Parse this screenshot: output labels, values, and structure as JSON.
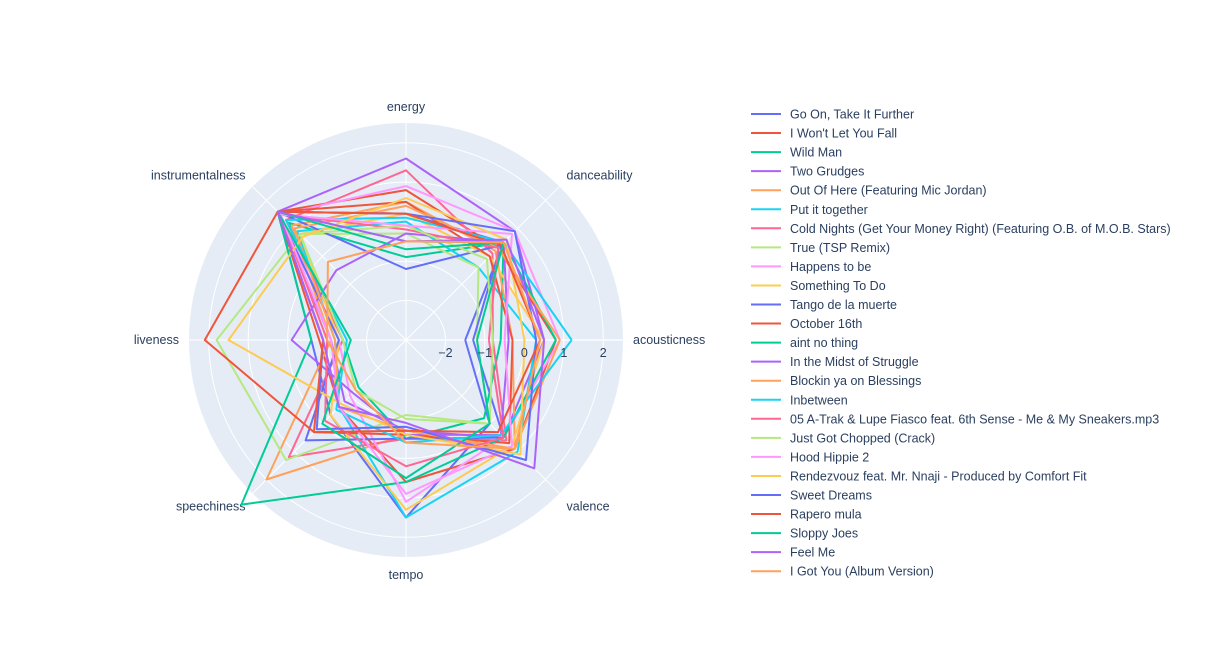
{
  "chart_data": {
    "type": "radar",
    "axes": [
      "acousticness",
      "danceability",
      "energy",
      "instrumentalness",
      "liveness",
      "speechiness",
      "tempo",
      "valence"
    ],
    "radial_range": [
      -3,
      2.5
    ],
    "radial_ticks": [
      -2,
      -1,
      0,
      1,
      2
    ],
    "radial_tick_labels": [
      "−2",
      "−1",
      "0",
      "1",
      "2"
    ],
    "legend_position": "right",
    "background": "#e5ecf6",
    "series": [
      {
        "name": "Go On, Take It Further",
        "color": "#636efa",
        "values": [
          -1.5,
          0.5,
          0.2,
          1.6,
          -0.6,
          -0.3,
          1.5,
          0.0
        ]
      },
      {
        "name": "I Won't Let You Fall",
        "color": "#EF553B",
        "values": [
          0.8,
          0.3,
          0.8,
          1.6,
          -0.8,
          -0.6,
          0.6,
          0.9
        ]
      },
      {
        "name": "Wild Man",
        "color": "#00cc96",
        "values": [
          -0.6,
          0.5,
          -0.9,
          1.2,
          -1.4,
          -1.3,
          -0.5,
          -0.2
        ]
      },
      {
        "name": "Two Grudges",
        "color": "#ab63fa",
        "values": [
          0.5,
          0.9,
          1.6,
          1.6,
          -1.1,
          -0.8,
          -0.7,
          0.5
        ]
      },
      {
        "name": "Out Of Here (Featuring Mic Jordan)",
        "color": "#FFA15A",
        "values": [
          -0.3,
          0.2,
          0.5,
          1.1,
          -1.1,
          2.0,
          -0.6,
          0.9
        ]
      },
      {
        "name": "Put it together",
        "color": "#19d3f3",
        "values": [
          0.3,
          -0.4,
          0.0,
          0.9,
          -1.2,
          -0.6,
          1.5,
          1.0
        ]
      },
      {
        "name": "Cold Nights (Get Your Money Right) (Featuring O.B. of M.O.B. Stars)",
        "color": "#FF6692",
        "values": [
          -0.8,
          0.1,
          1.3,
          1.3,
          -1.4,
          1.2,
          -0.5,
          0.6
        ]
      },
      {
        "name": "True (TSP Remix)",
        "color": "#B6E880",
        "values": [
          -1.2,
          -0.4,
          -0.3,
          0.8,
          1.8,
          1.3,
          -1.1,
          0.0
        ]
      },
      {
        "name": "Happens to be",
        "color": "#FF97FF",
        "values": [
          0.9,
          0.9,
          0.9,
          1.5,
          -1.3,
          -1.0,
          1.1,
          0.5
        ]
      },
      {
        "name": "Something To Do",
        "color": "#FECB52",
        "values": [
          0.5,
          0.0,
          0.2,
          0.8,
          -1.3,
          -0.3,
          1.3,
          0.8
        ]
      },
      {
        "name": "Tango de la muerte",
        "color": "#636efa",
        "values": [
          -1.3,
          0.4,
          -1.2,
          1.6,
          -1.3,
          0.6,
          -0.5,
          0.5
        ]
      },
      {
        "name": "October 16th",
        "color": "#EF553B",
        "values": [
          -0.3,
          0.0,
          0.5,
          1.6,
          2.1,
          0.3,
          -0.6,
          0.7
        ]
      },
      {
        "name": "aint no thing",
        "color": "#00cc96",
        "values": [
          0.8,
          0.5,
          -0.5,
          1.6,
          -0.6,
          2.9,
          0.6,
          0.5
        ]
      },
      {
        "name": "In the Midst of Struggle",
        "color": "#ab63fa",
        "values": [
          -0.4,
          0.5,
          -0.3,
          -0.5,
          -0.1,
          -1.1,
          -0.6,
          0.4
        ]
      },
      {
        "name": "Blockin ya on Blessings",
        "color": "#FFA15A",
        "values": [
          0.9,
          0.3,
          0.4,
          1.0,
          -1.2,
          -0.6,
          -0.7,
          0.9
        ]
      },
      {
        "name": "Inbetween",
        "color": "#19d3f3",
        "values": [
          1.2,
          0.5,
          0.1,
          1.3,
          -1.5,
          -0.5,
          -0.4,
          0.4
        ]
      },
      {
        "name": "05 A-Trak & Lupe Fiasco feat. 6th Sense - Me & My Sneakers.mp3",
        "color": "#FF6692",
        "values": [
          -0.9,
          0.3,
          -0.2,
          1.5,
          -1.0,
          -0.1,
          0.2,
          0.5
        ]
      },
      {
        "name": "Just Got Chopped (Crack)",
        "color": "#B6E880",
        "values": [
          -0.8,
          -0.1,
          -0.1,
          0.8,
          -1.4,
          -1.2,
          -1.0,
          0.0
        ]
      },
      {
        "name": "Hood Hippie 2",
        "color": "#FF97FF",
        "values": [
          -0.5,
          0.8,
          -0.1,
          1.5,
          -1.1,
          -0.6,
          0.9,
          0.8
        ]
      },
      {
        "name": "Rendezvouz feat. Mr. Nnaji - Produced by Comfort Fit",
        "color": "#FECB52",
        "values": [
          0.0,
          0.6,
          0.6,
          0.7,
          1.5,
          -0.7,
          -0.6,
          1.1
        ]
      },
      {
        "name": "Sweet Dreams",
        "color": "#636efa",
        "values": [
          0.3,
          0.9,
          0.2,
          1.6,
          -0.9,
          0.2,
          -0.8,
          1.3
        ]
      },
      {
        "name": "Rapero mula",
        "color": "#EF553B",
        "values": [
          0.4,
          0.4,
          0.2,
          1.6,
          -0.9,
          0.3,
          -0.7,
          0.3
        ]
      },
      {
        "name": "Sloppy Joes",
        "color": "#00cc96",
        "values": [
          -1.2,
          0.5,
          -0.7,
          1.6,
          -1.6,
          0.0,
          0.5,
          0.0
        ]
      },
      {
        "name": "Feel Me",
        "color": "#ab63fa",
        "values": [
          0.5,
          0.6,
          -0.5,
          1.6,
          -0.9,
          -0.6,
          -0.9,
          1.6
        ]
      },
      {
        "name": "I Got You (Album Version)",
        "color": "#FFA15A",
        "values": [
          0.4,
          0.5,
          -0.5,
          -0.2,
          -1.0,
          -1.2,
          -0.4,
          0.9
        ]
      }
    ]
  }
}
